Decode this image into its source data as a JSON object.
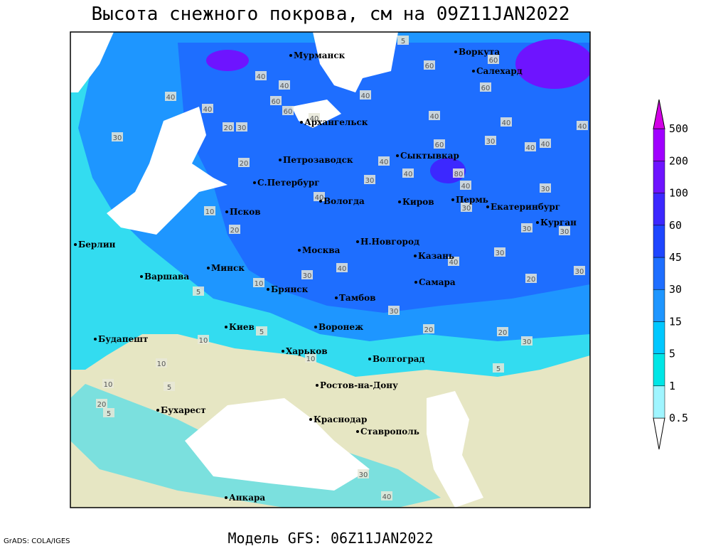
{
  "title": "Высота снежного покрова, см на 09Z11JAN2022",
  "footer": "Модель GFS: 06Z11JAN2022",
  "credit": "GrADS: COLA/IGES",
  "cities": [
    "Мурманск",
    "Воркута",
    "Салехард",
    "Архангельск",
    "Петрозаводск",
    "Сыктывкар",
    "С.Петербург",
    "Вологда",
    "Киров",
    "Пермь",
    "Екатеринбург",
    "Курган",
    "Псков",
    "Берлин",
    "Н.Новгород",
    "Москва",
    "Казань",
    "Минск",
    "Варшава",
    "Самара",
    "Брянск",
    "Тамбов",
    "Киев",
    "Воронеж",
    "Будапешт",
    "Харьков",
    "Волгоград",
    "Ростов-на-Дону",
    "Бухарест",
    "Краснодар",
    "Ставрополь",
    "Анкара"
  ],
  "contour_labels": [
    40,
    40,
    30,
    20,
    30,
    40,
    40,
    60,
    60,
    40,
    40,
    60,
    60,
    60,
    40,
    30,
    40,
    40,
    40,
    60,
    40,
    40,
    80,
    40,
    30,
    30,
    20,
    10,
    20,
    40,
    40,
    30,
    30,
    30,
    30,
    30,
    20,
    40,
    40,
    30,
    10,
    5,
    30,
    20,
    20,
    30,
    10,
    5,
    10,
    5,
    10,
    5,
    10,
    20,
    5,
    30,
    40,
    5
  ],
  "legend": {
    "levels": [
      0.5,
      1,
      5,
      15,
      30,
      45,
      60,
      100,
      200,
      500
    ],
    "colors": [
      "#ffffff",
      "#a0f5ff",
      "#00e6e6",
      "#00c8ff",
      "#1e96ff",
      "#1e6eff",
      "#1e46ff",
      "#3c28ff",
      "#6e14ff",
      "#a000ff",
      "#d200e6"
    ]
  }
}
